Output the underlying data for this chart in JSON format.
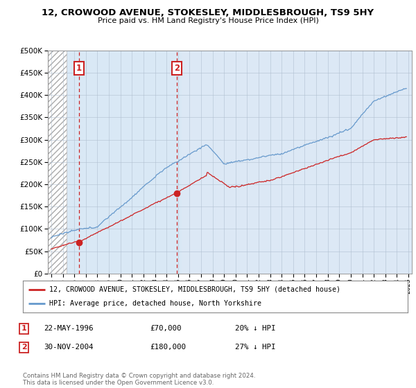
{
  "title": "12, CROWOOD AVENUE, STOKESLEY, MIDDLESBROUGH, TS9 5HY",
  "subtitle": "Price paid vs. HM Land Registry's House Price Index (HPI)",
  "ylabel_ticks": [
    "£0",
    "£50K",
    "£100K",
    "£150K",
    "£200K",
    "£250K",
    "£300K",
    "£350K",
    "£400K",
    "£450K",
    "£500K"
  ],
  "ytick_vals": [
    0,
    50000,
    100000,
    150000,
    200000,
    250000,
    300000,
    350000,
    400000,
    450000,
    500000
  ],
  "ylim": [
    0,
    500000
  ],
  "xlim_start": 1993.7,
  "xlim_end": 2025.3,
  "hatch_end": 1995.3,
  "hpi_color": "#6699cc",
  "price_color": "#cc2222",
  "point1_x": 1996.38,
  "point1_y": 70000,
  "point2_x": 2004.92,
  "point2_y": 180000,
  "vline1_x": 1996.38,
  "vline2_x": 2004.92,
  "legend_line1": "12, CROWOOD AVENUE, STOKESLEY, MIDDLESBROUGH, TS9 5HY (detached house)",
  "legend_line2": "HPI: Average price, detached house, North Yorkshire",
  "table_rows": [
    {
      "num": "1",
      "date": "22-MAY-1996",
      "price": "£70,000",
      "pct": "20% ↓ HPI"
    },
    {
      "num": "2",
      "date": "30-NOV-2004",
      "price": "£180,000",
      "pct": "27% ↓ HPI"
    }
  ],
  "footer": "Contains HM Land Registry data © Crown copyright and database right 2024.\nThis data is licensed under the Open Government Licence v3.0.",
  "plot_bg_color": "#dce8f5",
  "hatch_bg_color": "#c8c8c8",
  "grid_color": "#b0bfd0"
}
